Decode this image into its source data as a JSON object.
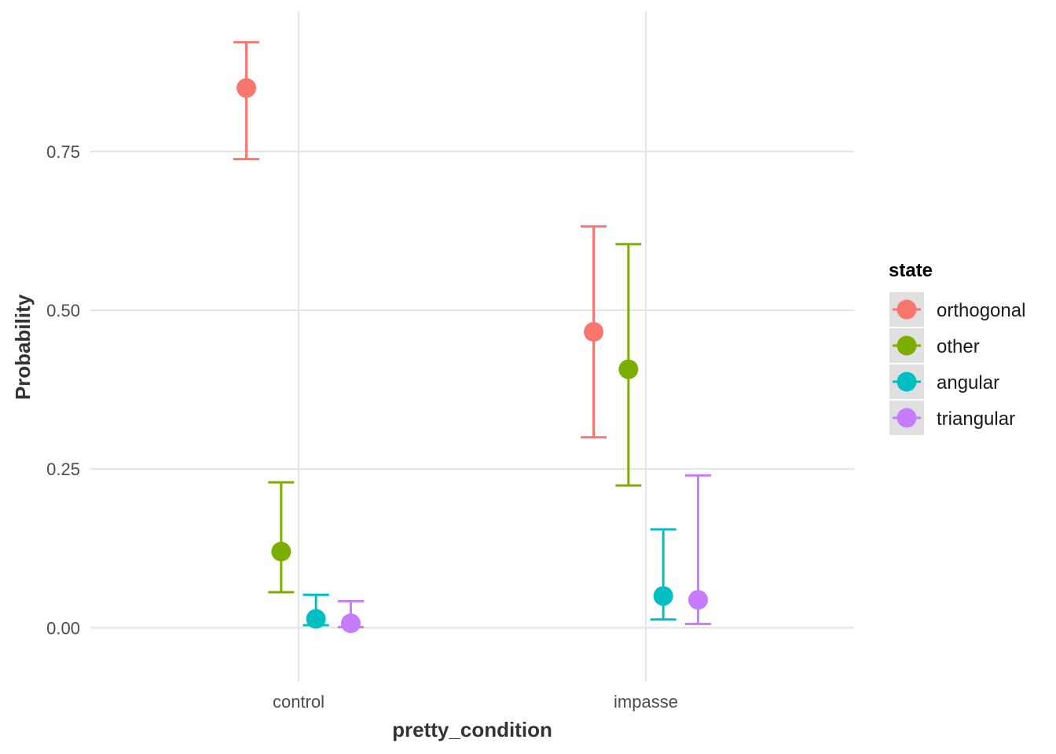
{
  "chart_data": {
    "type": "scatter",
    "title": "",
    "xlabel": "pretty_condition",
    "ylabel": "Probability",
    "categories": [
      "control",
      "impasse"
    ],
    "ylim": [
      -0.085,
      0.97
    ],
    "yticks": [
      0.0,
      0.25,
      0.5,
      0.75
    ],
    "ytick_labels": [
      "0.00",
      "0.25",
      "0.50",
      "0.75"
    ],
    "grid": true,
    "legend": {
      "title": "state",
      "placement": "right"
    },
    "series": [
      {
        "name": "orthogonal",
        "color": "#F8766D",
        "points": [
          {
            "x": "control",
            "y": 0.85,
            "ymin": 0.738,
            "ymax": 0.922
          },
          {
            "x": "impasse",
            "y": 0.466,
            "ymin": 0.3,
            "ymax": 0.632
          }
        ]
      },
      {
        "name": "other",
        "color": "#7CAE00",
        "points": [
          {
            "x": "control",
            "y": 0.12,
            "ymin": 0.056,
            "ymax": 0.229
          },
          {
            "x": "impasse",
            "y": 0.407,
            "ymin": 0.224,
            "ymax": 0.604
          }
        ]
      },
      {
        "name": "angular",
        "color": "#00BFC4",
        "points": [
          {
            "x": "control",
            "y": 0.014,
            "ymin": 0.004,
            "ymax": 0.052
          },
          {
            "x": "impasse",
            "y": 0.05,
            "ymin": 0.013,
            "ymax": 0.155
          }
        ]
      },
      {
        "name": "triangular",
        "color": "#C77CFF",
        "points": [
          {
            "x": "control",
            "y": 0.007,
            "ymin": 0.001,
            "ymax": 0.042
          },
          {
            "x": "impasse",
            "y": 0.044,
            "ymin": 0.006,
            "ymax": 0.24
          }
        ]
      }
    ]
  }
}
